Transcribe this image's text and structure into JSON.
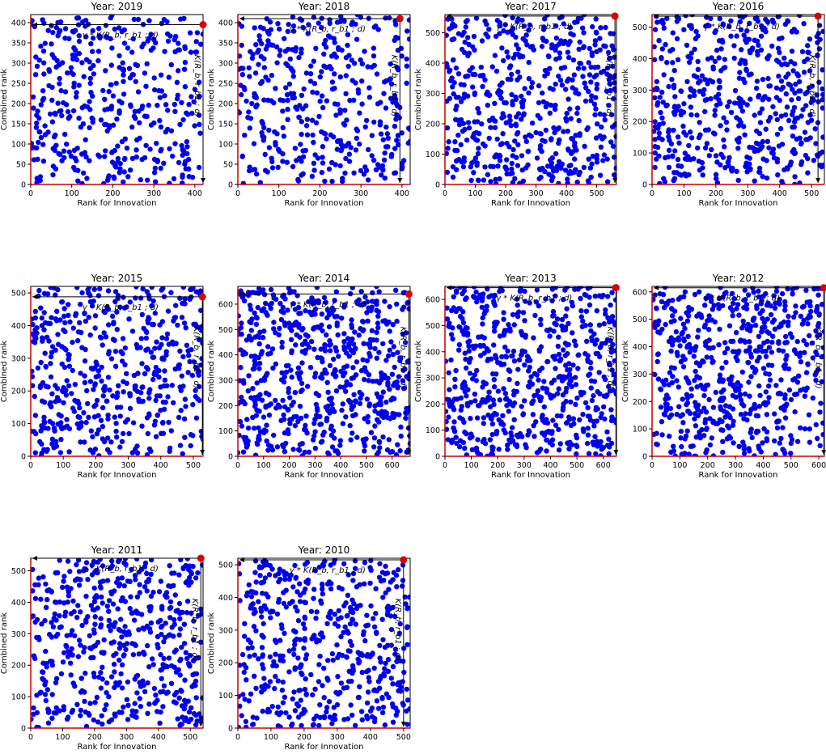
{
  "colors": {
    "points": "#0000ee",
    "highlight": "#dd0000",
    "axis_floor": "#cc0000",
    "frame": "#000000"
  },
  "chart_data": [
    {
      "type": "scatter",
      "title": "Year: 2019",
      "xlabel": "Rank for Innovation",
      "ylabel": "Combined rank",
      "xlim": [
        0,
        420
      ],
      "ylim": [
        0,
        420
      ],
      "xticks": [
        0,
        100,
        200,
        300,
        400
      ],
      "yticks": [
        0,
        50,
        100,
        150,
        200,
        250,
        300,
        350,
        400
      ],
      "n_points": 420,
      "seed": 2019,
      "highlight_point": [
        420,
        395
      ],
      "annotation_h": "γ * K(R_b, r_b1 ; d)",
      "annotation_v": "K(R_b, r_b1 ; d)"
    },
    {
      "type": "scatter",
      "title": "Year: 2018",
      "xlabel": "Rank for Innovation",
      "ylabel": "Combined rank",
      "xlim": [
        0,
        420
      ],
      "ylim": [
        0,
        420
      ],
      "xticks": [
        0,
        100,
        200,
        300,
        400
      ],
      "yticks": [
        0,
        50,
        100,
        150,
        200,
        250,
        300,
        350,
        400
      ],
      "n_points": 410,
      "seed": 2018,
      "highlight_point": [
        395,
        410
      ],
      "annotation_h": "γ * K(R_b, r_b1 ; d)",
      "annotation_v": "K(R_b, r_b1 ; d)"
    },
    {
      "type": "scatter",
      "title": "Year: 2017",
      "xlabel": "Rank for Innovation",
      "ylabel": "Combined rank",
      "xlim": [
        0,
        565
      ],
      "ylim": [
        0,
        560
      ],
      "xticks": [
        0,
        100,
        200,
        300,
        400,
        500
      ],
      "yticks": [
        0,
        100,
        200,
        300,
        400,
        500
      ],
      "n_points": 560,
      "seed": 2017,
      "highlight_point": [
        560,
        555
      ],
      "annotation_h": "γ * K(R_b, r_b1 ; d)",
      "annotation_v": "K(R_b, r_b1 ; d)"
    },
    {
      "type": "scatter",
      "title": "Year: 2016",
      "xlabel": "Rank for Innovation",
      "ylabel": "Combined rank",
      "xlim": [
        0,
        540
      ],
      "ylim": [
        0,
        540
      ],
      "xticks": [
        0,
        100,
        200,
        300,
        400,
        500
      ],
      "yticks": [
        0,
        100,
        200,
        300,
        400,
        500
      ],
      "n_points": 530,
      "seed": 2016,
      "highlight_point": [
        520,
        535
      ],
      "annotation_h": "γ * K(R_b, r_b1 ; d)",
      "annotation_v": "K(R_b, r_b1 ; d)"
    },
    {
      "type": "scatter",
      "title": "Year: 2015",
      "xlabel": "Rank for Innovation",
      "ylabel": "Combined rank",
      "xlim": [
        0,
        530
      ],
      "ylim": [
        0,
        520
      ],
      "xticks": [
        0,
        100,
        200,
        300,
        400,
        500
      ],
      "yticks": [
        0,
        100,
        200,
        300,
        400,
        500
      ],
      "n_points": 520,
      "seed": 2015,
      "highlight_point": [
        528,
        488
      ],
      "annotation_h": "γ * K(R_b, r_b1 ; d)",
      "annotation_v": "K(R_b, r_b1 ; d)"
    },
    {
      "type": "scatter",
      "title": "Year: 2014",
      "xlabel": "Rank for Innovation",
      "ylabel": "Combined rank",
      "xlim": [
        0,
        670
      ],
      "ylim": [
        0,
        670
      ],
      "xticks": [
        0,
        100,
        200,
        300,
        400,
        500,
        600
      ],
      "yticks": [
        0,
        100,
        200,
        300,
        400,
        500,
        600
      ],
      "n_points": 660,
      "seed": 2014,
      "highlight_point": [
        665,
        640
      ],
      "annotation_h": "γ * K(R_b, r_b1 ; d)",
      "annotation_v": "K(R_b, r_b1 ; d)"
    },
    {
      "type": "scatter",
      "title": "Year: 2013",
      "xlabel": "Rank for Innovation",
      "ylabel": "Combined rank",
      "xlim": [
        0,
        650
      ],
      "ylim": [
        0,
        650
      ],
      "xticks": [
        0,
        100,
        200,
        300,
        400,
        500,
        600
      ],
      "yticks": [
        0,
        100,
        200,
        300,
        400,
        500,
        600
      ],
      "n_points": 650,
      "seed": 2013,
      "highlight_point": [
        648,
        645
      ],
      "annotation_h": "γ * K(R_b, r_b1 ; d)",
      "annotation_v": "K(R_b, r_b1 ; d)"
    },
    {
      "type": "scatter",
      "title": "Year: 2012",
      "xlabel": "Rank for Innovation",
      "ylabel": "Combined rank",
      "xlim": [
        0,
        620
      ],
      "ylim": [
        0,
        620
      ],
      "xticks": [
        0,
        100,
        200,
        300,
        400,
        500,
        600
      ],
      "yticks": [
        0,
        100,
        200,
        300,
        400,
        500,
        600
      ],
      "n_points": 620,
      "seed": 2012,
      "highlight_point": [
        618,
        615
      ],
      "annotation_h": "γ * K(R_b, r_b1 ; d)",
      "annotation_v": "K(R_b, r_b1 ; d)"
    },
    {
      "type": "scatter",
      "title": "Year: 2011",
      "xlabel": "Rank for Innovation",
      "ylabel": "Combined rank",
      "xlim": [
        0,
        540
      ],
      "ylim": [
        0,
        540
      ],
      "xticks": [
        0,
        100,
        200,
        300,
        400,
        500
      ],
      "yticks": [
        0,
        100,
        200,
        300,
        400,
        500
      ],
      "n_points": 540,
      "seed": 2011,
      "highlight_point": [
        533,
        540
      ],
      "annotation_h": "γ * K(R_b, r_b1 ; d)",
      "annotation_v": "K(R_b, r_b1 ; d)"
    },
    {
      "type": "scatter",
      "title": "Year: 2010",
      "xlabel": "Rank for Innovation",
      "ylabel": "Combined rank",
      "xlim": [
        0,
        520
      ],
      "ylim": [
        0,
        520
      ],
      "xticks": [
        0,
        100,
        200,
        300,
        400,
        500
      ],
      "yticks": [
        0,
        100,
        200,
        300,
        400,
        500
      ],
      "n_points": 510,
      "seed": 2010,
      "highlight_point": [
        500,
        515
      ],
      "annotation_h": "γ * K(R_b, r_b1 ; d)",
      "annotation_v": "K(R_b, r_b1 ; d)"
    }
  ]
}
